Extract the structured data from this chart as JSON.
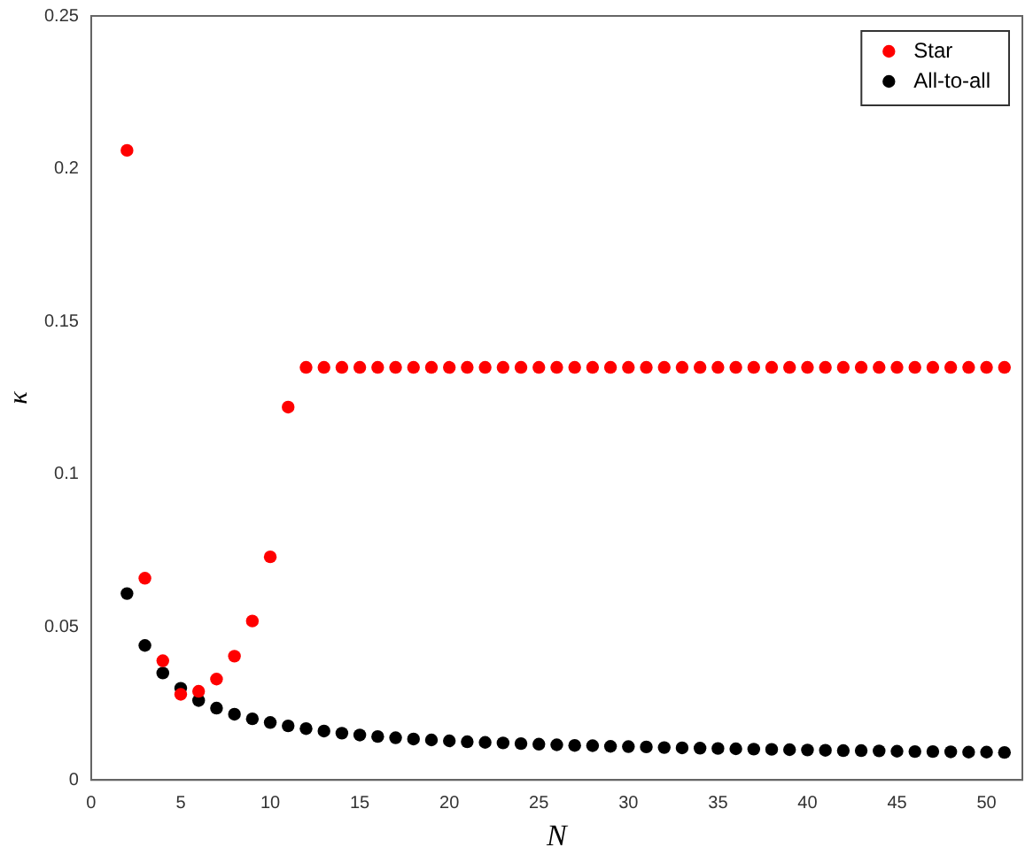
{
  "chart_data": {
    "type": "scatter",
    "xlabel": "N",
    "ylabel": "κ",
    "xlim": [
      0,
      52
    ],
    "xticks": [
      0,
      5,
      10,
      15,
      20,
      25,
      30,
      35,
      40,
      45,
      50
    ],
    "ylim": [
      0,
      0.25
    ],
    "yticks": [
      0,
      0.05,
      0.1,
      0.15,
      0.2,
      0.25
    ],
    "grid": false,
    "legend": "top right",
    "marker": "circle",
    "series": [
      {
        "name": "Star",
        "color": "#ff0000",
        "x": [
          2,
          3,
          4,
          5,
          6,
          7,
          8,
          9,
          10,
          11,
          12,
          13,
          14,
          15,
          16,
          17,
          18,
          19,
          20,
          21,
          22,
          23,
          24,
          25,
          26,
          27,
          28,
          29,
          30,
          31,
          32,
          33,
          34,
          35,
          36,
          37,
          38,
          39,
          40,
          41,
          42,
          43,
          44,
          45,
          46,
          47,
          48,
          49,
          50,
          51
        ],
        "values": [
          0.206,
          0.066,
          0.039,
          0.028,
          0.029,
          0.033,
          0.0405,
          0.052,
          0.073,
          0.122,
          0.135,
          0.135,
          0.135,
          0.135,
          0.135,
          0.135,
          0.135,
          0.135,
          0.135,
          0.135,
          0.135,
          0.135,
          0.135,
          0.135,
          0.135,
          0.135,
          0.135,
          0.135,
          0.135,
          0.135,
          0.135,
          0.135,
          0.135,
          0.135,
          0.135,
          0.135,
          0.135,
          0.135,
          0.135,
          0.135,
          0.135,
          0.135,
          0.135,
          0.135,
          0.135,
          0.135,
          0.135,
          0.135,
          0.135,
          0.135
        ]
      },
      {
        "name": "All-to-all",
        "color": "#000000",
        "x": [
          2,
          3,
          4,
          5,
          6,
          7,
          8,
          9,
          10,
          11,
          12,
          13,
          14,
          15,
          16,
          17,
          18,
          19,
          20,
          21,
          22,
          23,
          24,
          25,
          26,
          27,
          28,
          29,
          30,
          31,
          32,
          33,
          34,
          35,
          36,
          37,
          38,
          39,
          40,
          41,
          42,
          43,
          44,
          45,
          46,
          47,
          48,
          49,
          50,
          51
        ],
        "values": [
          0.061,
          0.044,
          0.035,
          0.03,
          0.026,
          0.0235,
          0.0215,
          0.02,
          0.0188,
          0.0177,
          0.0168,
          0.016,
          0.0153,
          0.0147,
          0.0142,
          0.0138,
          0.0134,
          0.0131,
          0.0128,
          0.0125,
          0.0123,
          0.0121,
          0.0119,
          0.0117,
          0.0115,
          0.0113,
          0.0112,
          0.011,
          0.0109,
          0.0108,
          0.0106,
          0.0105,
          0.0104,
          0.0103,
          0.0102,
          0.0101,
          0.01,
          0.0099,
          0.0098,
          0.0097,
          0.0096,
          0.0096,
          0.0095,
          0.0094,
          0.0093,
          0.0093,
          0.0092,
          0.0091,
          0.0091,
          0.009
        ]
      }
    ]
  }
}
